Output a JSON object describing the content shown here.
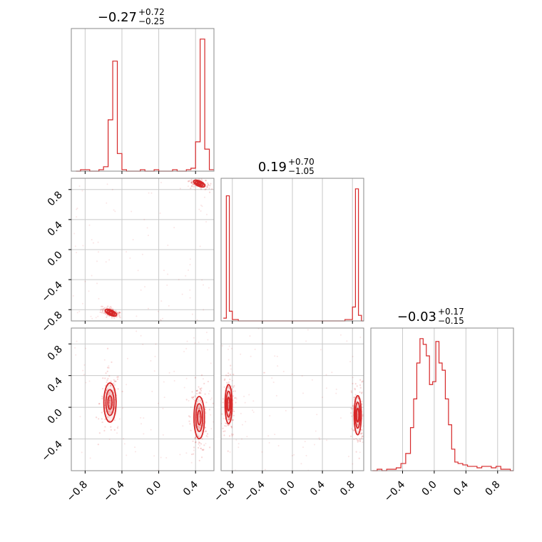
{
  "chart_data": {
    "type": "corner",
    "color": "#d62728",
    "grid": true,
    "parameters": [
      {
        "title": {
          "median": "−0.27",
          "plus": "+0.72",
          "minus": "−0.25"
        },
        "range": [
          -0.95,
          0.6
        ],
        "ticks": [
          "−0.8",
          "−0.4",
          "0.0",
          "0.4"
        ],
        "tick_values": [
          -0.8,
          -0.4,
          0.0,
          0.4
        ],
        "histogram_bins": [
          -0.9,
          -0.85,
          -0.8,
          -0.75,
          -0.7,
          -0.65,
          -0.6,
          -0.55,
          -0.5,
          -0.45,
          -0.4,
          -0.35,
          -0.3,
          -0.25,
          -0.2,
          -0.15,
          -0.1,
          -0.05,
          0.0,
          0.05,
          0.1,
          0.15,
          0.2,
          0.25,
          0.3,
          0.35,
          0.4,
          0.45,
          0.5,
          0.55
        ],
        "histogram_values": [
          0,
          1,
          1,
          0,
          0,
          1,
          3,
          35,
          75,
          12,
          1,
          0,
          0,
          0,
          1,
          0,
          0,
          1,
          0,
          0,
          0,
          1,
          0,
          0,
          1,
          2,
          20,
          90,
          15,
          1
        ]
      },
      {
        "title": {
          "median": "0.19",
          "plus": "+0.70",
          "minus": "−1.05"
        },
        "range": [
          -0.95,
          0.95
        ],
        "ticks": [
          "−0.8",
          "−0.4",
          "0.0",
          "0.4",
          "0.8"
        ],
        "tick_values": [
          -0.8,
          -0.4,
          0.0,
          0.4,
          0.8
        ],
        "histogram_bins": [
          -0.92,
          -0.88,
          -0.84,
          -0.8,
          -0.76,
          -0.72,
          -0.68,
          -0.6,
          -0.5,
          -0.4,
          -0.3,
          -0.2,
          -0.1,
          0.0,
          0.1,
          0.2,
          0.3,
          0.4,
          0.5,
          0.6,
          0.7,
          0.76,
          0.8,
          0.84,
          0.88,
          0.92
        ],
        "histogram_values": [
          2,
          90,
          7,
          1,
          1,
          0,
          0,
          0,
          0,
          0,
          0,
          0,
          0,
          0,
          0,
          0,
          0,
          0,
          0,
          0,
          1,
          1,
          10,
          95,
          4,
          0
        ]
      },
      {
        "title": {
          "median": "−0.03",
          "plus": "+0.17",
          "minus": "−0.15"
        },
        "range": [
          -0.8,
          1.0
        ],
        "ticks": [
          "−0.4",
          "0.0",
          "0.4",
          "0.8"
        ],
        "tick_values": [
          -0.4,
          0.0,
          0.4,
          0.8
        ],
        "histogram_bins": [
          -0.78,
          -0.72,
          -0.66,
          -0.6,
          -0.54,
          -0.48,
          -0.42,
          -0.36,
          -0.3,
          -0.26,
          -0.22,
          -0.18,
          -0.14,
          -0.1,
          -0.06,
          -0.02,
          0.02,
          0.06,
          0.1,
          0.14,
          0.18,
          0.22,
          0.26,
          0.3,
          0.36,
          0.42,
          0.48,
          0.54,
          0.6,
          0.66,
          0.72,
          0.78,
          0.84,
          0.9,
          0.96
        ],
        "histogram_values": [
          0,
          1,
          0,
          1,
          1,
          2,
          5,
          12,
          30,
          50,
          75,
          92,
          88,
          80,
          60,
          62,
          90,
          75,
          70,
          50,
          32,
          15,
          6,
          5,
          4,
          3,
          3,
          2,
          3,
          3,
          2,
          3,
          1,
          1,
          0
        ]
      }
    ],
    "pairs": [
      {
        "x_param": 0,
        "y_param": 1,
        "clusters": [
          {
            "center": [
              -0.52,
              -0.84
            ],
            "spread": [
              0.035,
              0.018
            ],
            "angle": -25
          },
          {
            "center": [
              0.44,
              0.88
            ],
            "spread": [
              0.035,
              0.018
            ],
            "angle": -25
          }
        ]
      },
      {
        "x_param": 0,
        "y_param": 2,
        "clusters": [
          {
            "center": [
              -0.53,
              0.06
            ],
            "spread": [
              0.035,
              0.13
            ],
            "angle": 0
          },
          {
            "center": [
              0.44,
              -0.13
            ],
            "spread": [
              0.03,
              0.14
            ],
            "angle": 0
          }
        ]
      },
      {
        "x_param": 1,
        "y_param": 2,
        "clusters": [
          {
            "center": [
              -0.85,
              0.04
            ],
            "spread": [
              0.025,
              0.13
            ],
            "angle": 0
          },
          {
            "center": [
              0.87,
              -0.1
            ],
            "spread": [
              0.025,
              0.13
            ],
            "angle": 0
          }
        ]
      }
    ]
  }
}
